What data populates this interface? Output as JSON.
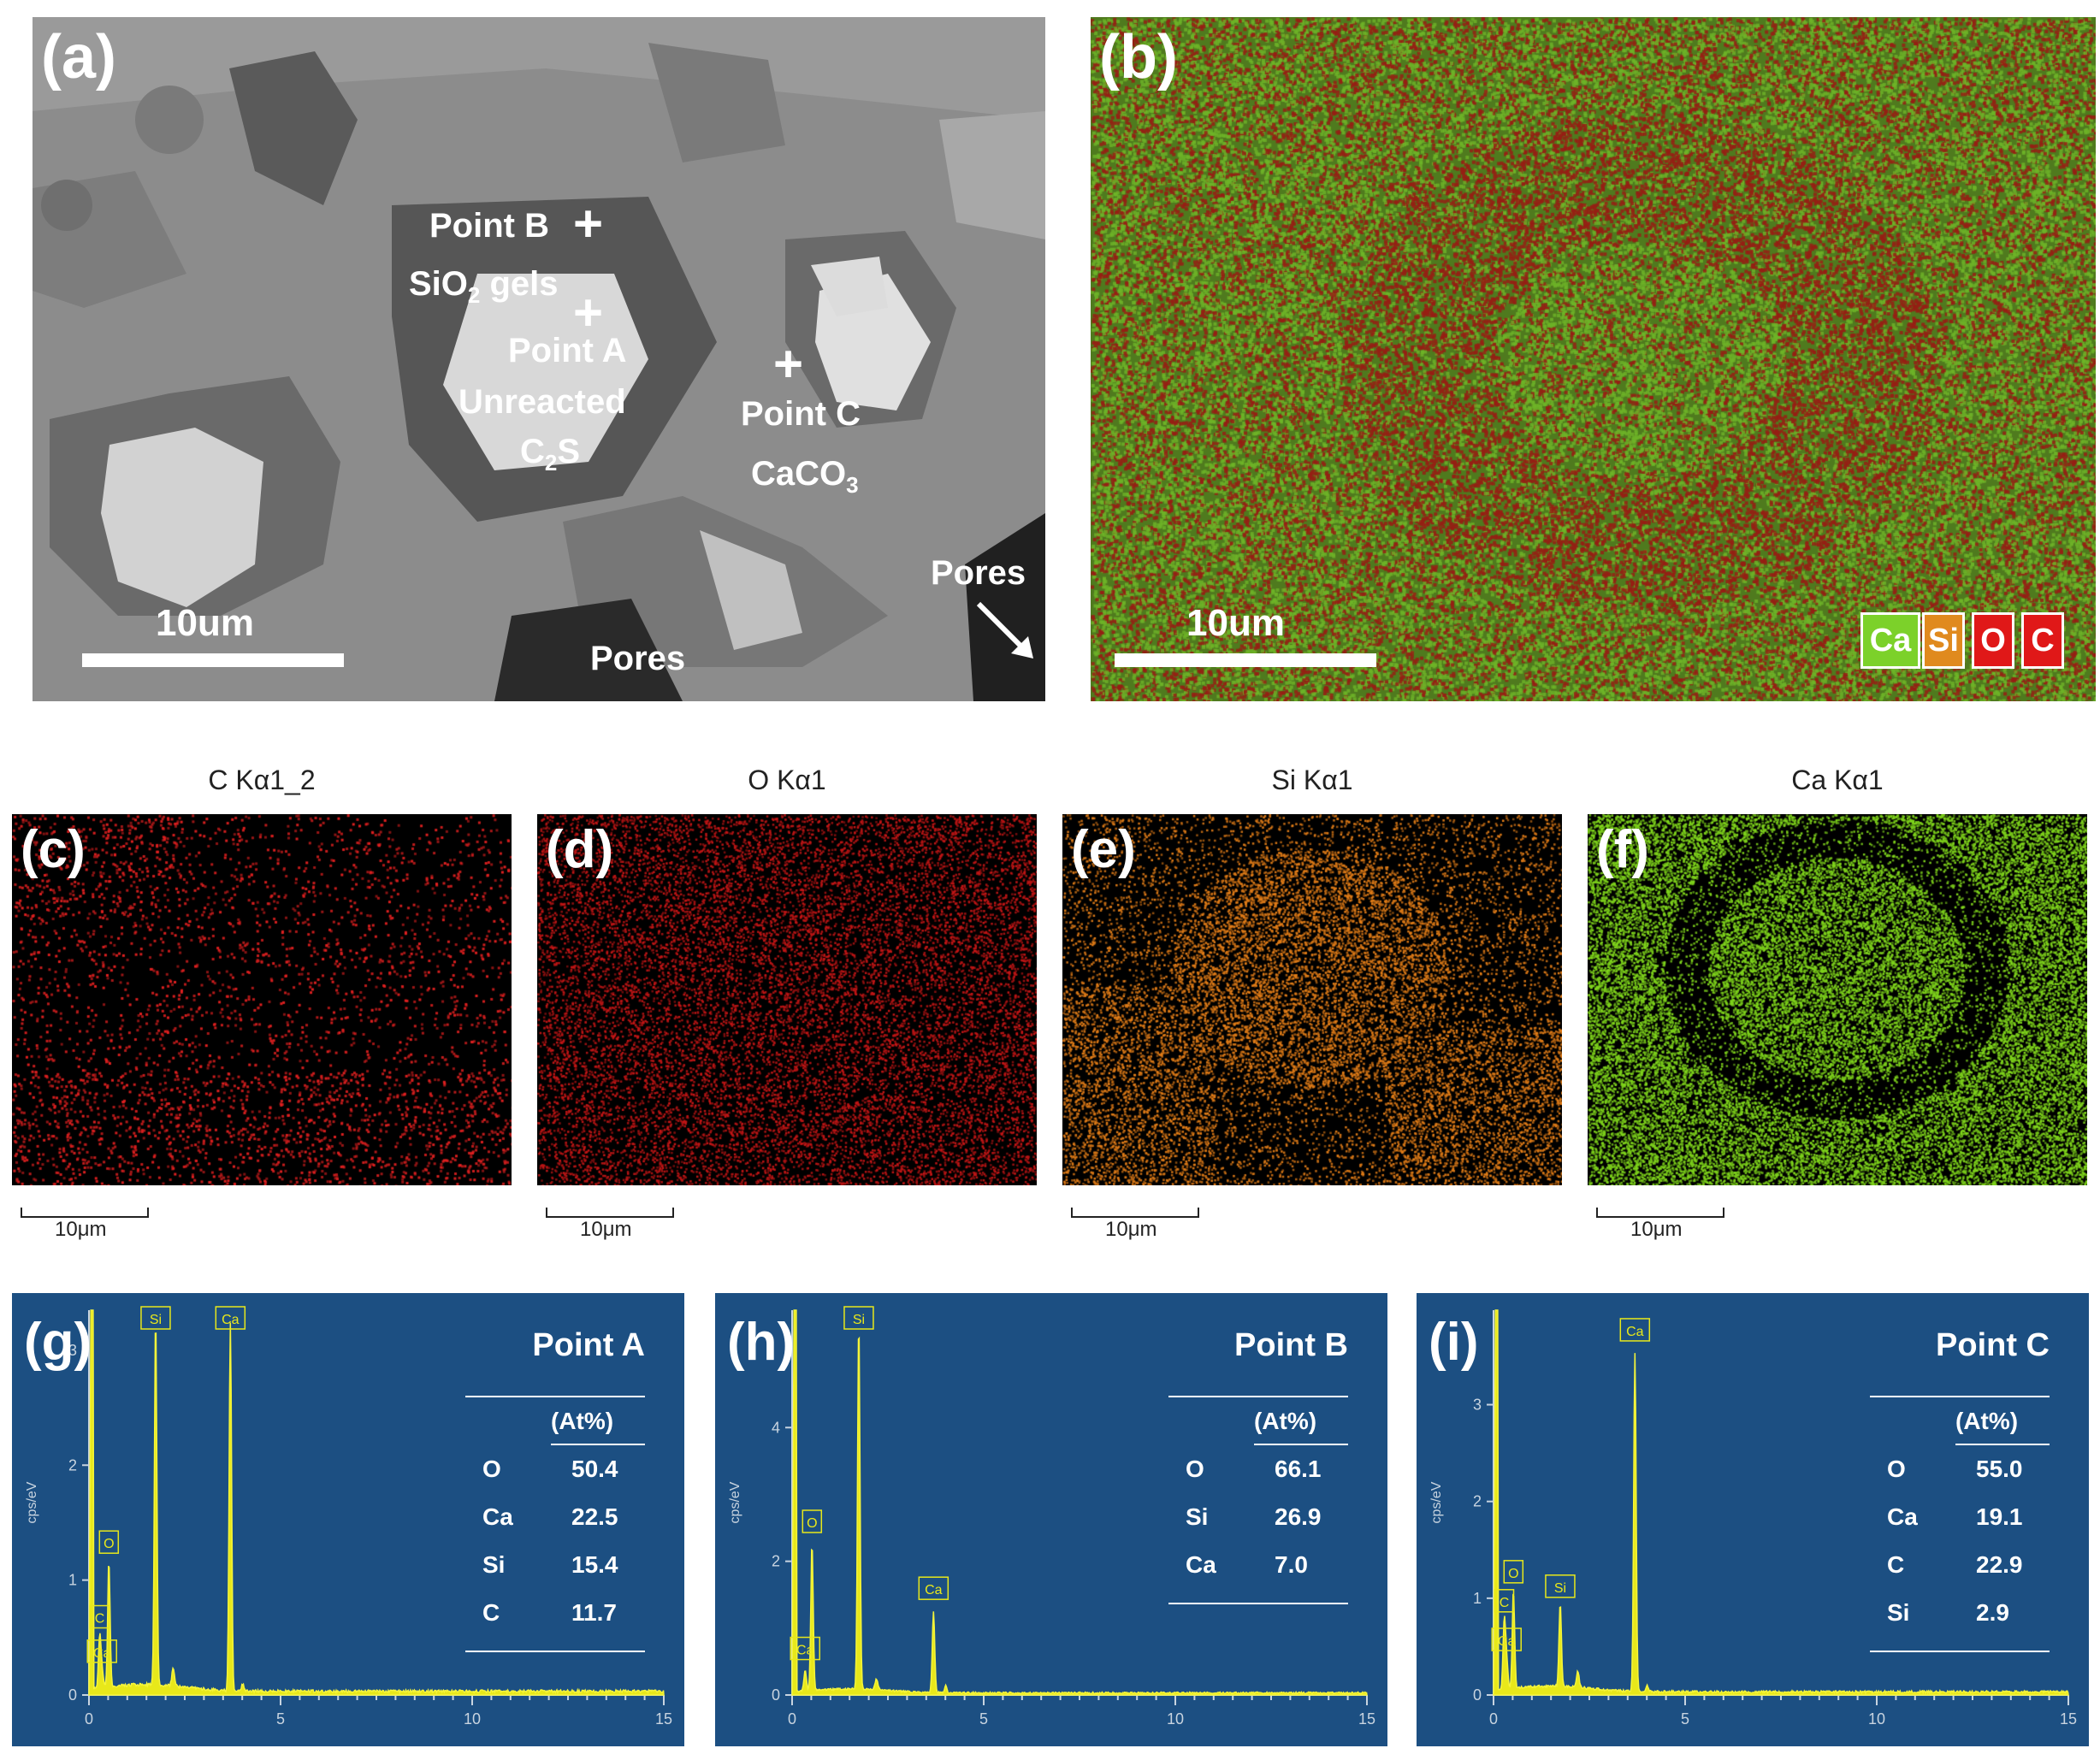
{
  "panel_a": {
    "label": "(a)",
    "annotations": {
      "point_b": "Point B",
      "sio2_gels_prefix": "SiO",
      "sio2_gels_sub": "2",
      "sio2_gels_suffix": " gels",
      "point_a": "Point A",
      "unreacted": "Unreacted",
      "c2s_prefix": "C",
      "c2s_sub": "2",
      "c2s_suffix": "S",
      "point_c": "Point C",
      "caco3_prefix": "CaCO",
      "caco3_sub": "3",
      "pores_right": "Pores",
      "pores_bottom": "Pores"
    },
    "scale_label": "10um"
  },
  "panel_b": {
    "label": "(b)",
    "scale_label": "10um",
    "legend": [
      {
        "text": "Ca",
        "color": "#7cd12a"
      },
      {
        "text": "Si",
        "color": "#e08a1e"
      },
      {
        "text": "O",
        "color": "#e01818"
      },
      {
        "text": "C",
        "color": "#e01818"
      }
    ]
  },
  "maps": [
    {
      "label": "(c)",
      "title": "C Kα1_2",
      "scale": "10μm",
      "color": "#e02020"
    },
    {
      "label": "(d)",
      "title": "O Kα1",
      "scale": "10μm",
      "color": "#c41616"
    },
    {
      "label": "(e)",
      "title": "Si Kα1",
      "scale": "10μm",
      "color": "#e27d18"
    },
    {
      "label": "(f)",
      "title": "Ca Kα1",
      "scale": "10μm",
      "color": "#7fd41c"
    }
  ],
  "chart_data": [
    {
      "type": "line",
      "panel": "(g)",
      "title": "Point A",
      "ylabel": "cps/eV",
      "xlim": [
        0,
        15
      ],
      "ylim": [
        0,
        3.2
      ],
      "x_ticks": [
        "0",
        "5",
        "10",
        "15"
      ],
      "y_ticks": [
        "0",
        "1",
        "2",
        "3"
      ],
      "peaks": [
        {
          "element": "C",
          "x": 0.28,
          "y": 0.45
        },
        {
          "element": "Ca",
          "x": 0.34,
          "y": 0.15
        },
        {
          "element": "O",
          "x": 0.52,
          "y": 1.1
        },
        {
          "element": "Si",
          "x": 1.74,
          "y": 3.2
        },
        {
          "element": "Ca",
          "x": 3.69,
          "y": 3.2
        }
      ],
      "table": {
        "header": "(At%)",
        "rows": [
          {
            "element": "O",
            "value": "50.4"
          },
          {
            "element": "Ca",
            "value": "22.5"
          },
          {
            "element": "Si",
            "value": "15.4"
          },
          {
            "element": "C",
            "value": "11.7"
          }
        ]
      }
    },
    {
      "type": "line",
      "panel": "(h)",
      "title": "Point B",
      "ylabel": "cps/eV",
      "xlim": [
        0,
        15
      ],
      "ylim": [
        0,
        5.5
      ],
      "x_ticks": [
        "0",
        "5",
        "10",
        "15"
      ],
      "y_ticks": [
        "0",
        "2",
        "4"
      ],
      "peaks": [
        {
          "element": "Ca",
          "x": 0.34,
          "y": 0.3
        },
        {
          "element": "O",
          "x": 0.52,
          "y": 2.2
        },
        {
          "element": "Si",
          "x": 1.74,
          "y": 5.5
        },
        {
          "element": "Ca",
          "x": 3.69,
          "y": 1.2
        }
      ],
      "table": {
        "header": "(At%)",
        "rows": [
          {
            "element": "O",
            "value": "66.1"
          },
          {
            "element": "Si",
            "value": "26.9"
          },
          {
            "element": "Ca",
            "value": "7.0"
          }
        ]
      }
    },
    {
      "type": "line",
      "panel": "(i)",
      "title": "Point C",
      "ylabel": "cps/eV",
      "xlim": [
        0,
        15
      ],
      "ylim": [
        0,
        3.8
      ],
      "x_ticks": [
        "0",
        "5",
        "10",
        "15"
      ],
      "y_ticks": [
        "0",
        "1",
        "2",
        "3"
      ],
      "peaks": [
        {
          "element": "C",
          "x": 0.28,
          "y": 0.7
        },
        {
          "element": "Ca",
          "x": 0.34,
          "y": 0.3
        },
        {
          "element": "O",
          "x": 0.52,
          "y": 1.0
        },
        {
          "element": "Si",
          "x": 1.74,
          "y": 0.85
        },
        {
          "element": "Ca",
          "x": 3.69,
          "y": 3.5
        }
      ],
      "table": {
        "header": "(At%)",
        "rows": [
          {
            "element": "O",
            "value": "55.0"
          },
          {
            "element": "Ca",
            "value": "19.1"
          },
          {
            "element": "C",
            "value": "22.9"
          },
          {
            "element": "Si",
            "value": "2.9"
          }
        ]
      }
    }
  ]
}
